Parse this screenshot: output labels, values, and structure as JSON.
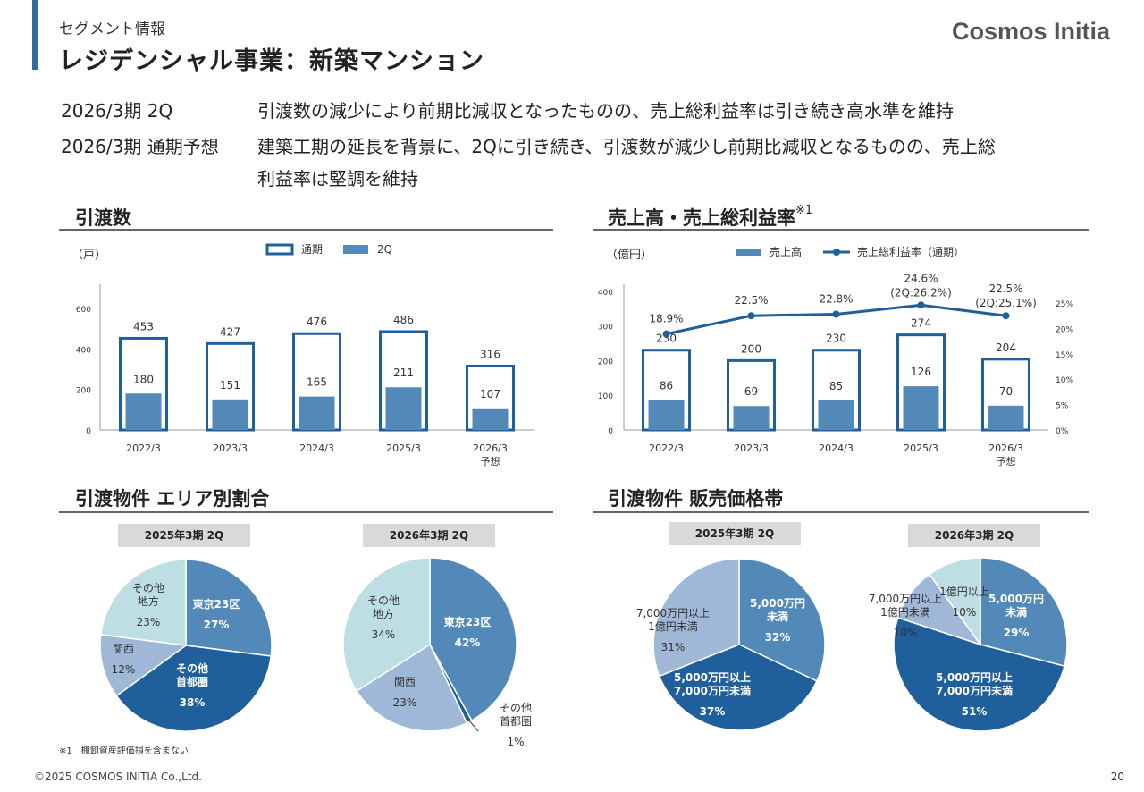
{
  "header": {
    "subtitle": "セグメント情報",
    "title": "レジデンシャル事業：新築マンション",
    "brand": "Cosmos Initia"
  },
  "summary": [
    {
      "label": "2026/3期 2Q",
      "text": "引渡数の減少により前期比減収となったものの、売上総利益率は引き続き高水準を維持"
    },
    {
      "label": "2026/3期 通期予想",
      "text": "建築工期の延長を背景に、2Qに引き続き、引渡数が減少し前期比減収となるものの、売上総",
      "text2": "利益率は堅調を維持"
    }
  ],
  "sections": {
    "deliveries": "引渡数",
    "sales": "売上高・売上総利益率",
    "sales_note": "※1",
    "area": "引渡物件 エリア別割合",
    "price": "引渡物件 販売価格帯"
  },
  "colors": {
    "dark": "#1f5f9c",
    "mid": "#5389b9",
    "light": "#9fb8d8",
    "pale": "#bddfe3",
    "outline": "#1f5f9c"
  },
  "chart_data": [
    {
      "type": "bar",
      "title": "引渡数",
      "unit": "（戸）",
      "categories": [
        "2022/3",
        "2023/3",
        "2024/3",
        "2025/3",
        "2026/3"
      ],
      "category_sub": [
        "",
        "",
        "",
        "",
        "予想"
      ],
      "legend": [
        "通期",
        "2Q"
      ],
      "series": [
        {
          "name": "通期",
          "values": [
            453,
            427,
            476,
            486,
            316
          ]
        },
        {
          "name": "2Q",
          "values": [
            180,
            151,
            165,
            211,
            107
          ]
        }
      ],
      "yticks": [
        "0",
        "200",
        "400",
        "600"
      ],
      "ylim": [
        0,
        720
      ]
    },
    {
      "type": "bar",
      "title": "売上高・売上総利益率",
      "unit": "（億円）",
      "categories": [
        "2022/3",
        "2023/3",
        "2024/3",
        "2025/3",
        "2026/3"
      ],
      "category_sub": [
        "",
        "",
        "",
        "",
        "予想"
      ],
      "legend": [
        "売上高",
        "売上総利益率（通期）"
      ],
      "series": [
        {
          "name": "通期",
          "values": [
            230,
            200,
            230,
            274,
            204
          ]
        },
        {
          "name": "2Q",
          "values": [
            86,
            69,
            85,
            126,
            70
          ]
        }
      ],
      "line": {
        "name": "売上総利益率（通期）",
        "values": [
          18.9,
          22.5,
          22.8,
          24.6,
          22.5
        ],
        "labels": [
          "18.9%",
          "22.5%",
          "22.8%",
          "24.6%",
          "22.5%"
        ],
        "sublabels": [
          "",
          "",
          "",
          "(2Q:26.2%)",
          "(2Q:25.1%)"
        ]
      },
      "yticks": [
        "0",
        "100",
        "200",
        "300",
        "400"
      ],
      "ylim": [
        0,
        420
      ],
      "y2ticks": [
        "0%",
        "5%",
        "10%",
        "15%",
        "20%",
        "25%"
      ],
      "y2lim": [
        0,
        25
      ]
    },
    {
      "type": "pie",
      "title": "2025年3期 2Q",
      "slices": [
        {
          "label": [
            "東京23区"
          ],
          "pct": "27%",
          "value": 27
        },
        {
          "label": [
            "その他",
            "首都圏"
          ],
          "pct": "38%",
          "value": 38
        },
        {
          "label": [
            "関西"
          ],
          "pct": "12%",
          "value": 12
        },
        {
          "label": [
            "その他",
            "地方"
          ],
          "pct": "23%",
          "value": 23
        }
      ]
    },
    {
      "type": "pie",
      "title": "2026年3期 2Q",
      "slices": [
        {
          "label": [
            "東京23区"
          ],
          "pct": "42%",
          "value": 42
        },
        {
          "label": [
            "その他",
            "首都圏"
          ],
          "pct": "1%",
          "value": 1
        },
        {
          "label": [
            "関西"
          ],
          "pct": "23%",
          "value": 23
        },
        {
          "label": [
            "その他",
            "地方"
          ],
          "pct": "34%",
          "value": 34
        }
      ]
    },
    {
      "type": "pie",
      "title": "2025年3期 2Q",
      "slices": [
        {
          "label": [
            "5,000万円",
            "未満"
          ],
          "pct": "32%",
          "value": 32
        },
        {
          "label": [
            "5,000万円以上",
            "7,000万円未満"
          ],
          "pct": "37%",
          "value": 37
        },
        {
          "label": [
            "7,000万円以上",
            "1億円未満"
          ],
          "pct": "31%",
          "value": 31
        }
      ]
    },
    {
      "type": "pie",
      "title": "2026年3期 2Q",
      "slices": [
        {
          "label": [
            "5,000万円",
            "未満"
          ],
          "pct": "29%",
          "value": 29
        },
        {
          "label": [
            "5,000万円以上",
            "7,000万円未満"
          ],
          "pct": "51%",
          "value": 51
        },
        {
          "label": [
            "7,000万円以上",
            "1億円未満"
          ],
          "pct": "10%",
          "value": 10
        },
        {
          "label": [
            "1億円以上"
          ],
          "pct": "10%",
          "value": 10
        }
      ]
    }
  ],
  "footer": {
    "footnote": "※1　棚卸資産評価損を含まない",
    "copyright": "©2025 COSMOS INITIA Co.,Ltd.",
    "page": "20"
  }
}
